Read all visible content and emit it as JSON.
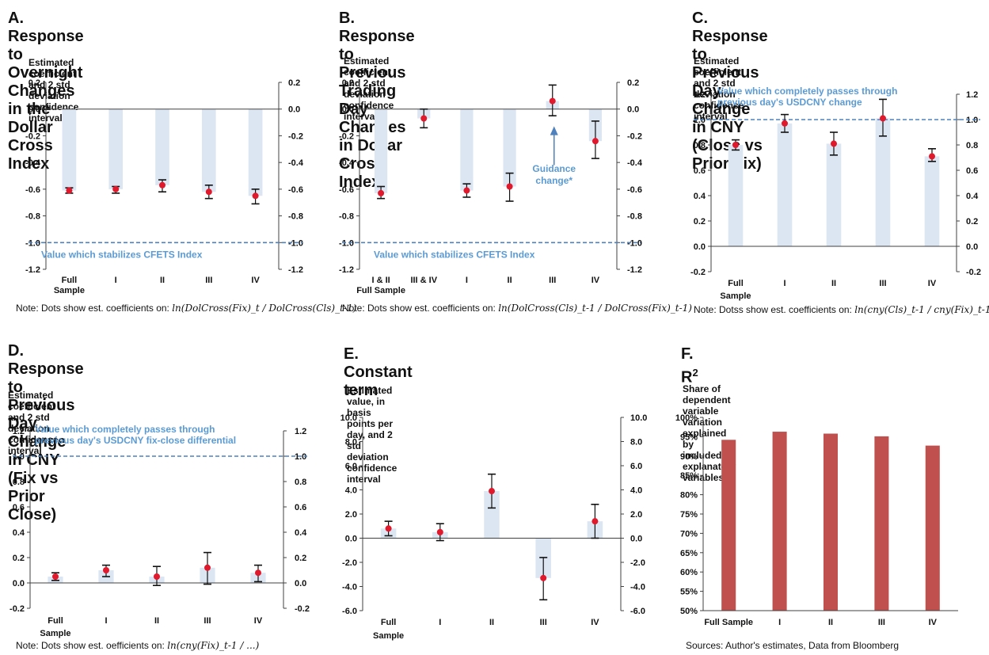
{
  "charts": [
    {
      "id": "A",
      "title": "A. Response to Overnight\nChanges in the Dollar Cross Index",
      "subtitle": "Estimated coefficient and 2 std deviation\nconfidence interval",
      "note": "Note: Dots show est. coefficients on:",
      "formula": "ln(DolCross(Fix)_t / DolCross(Cls)_t-1)",
      "chart_data": {
        "type": "bar",
        "categories": [
          "Full\nSample",
          "I",
          "II",
          "III",
          "IV"
        ],
        "values": [
          -0.61,
          -0.6,
          -0.57,
          -0.62,
          -0.65
        ],
        "error_low": [
          -0.63,
          -0.63,
          -0.62,
          -0.67,
          -0.71
        ],
        "error_high": [
          -0.59,
          -0.58,
          -0.53,
          -0.57,
          -0.6
        ],
        "ylim": [
          -1.2,
          0.2
        ],
        "yticks": [
          "0.2",
          "0.0",
          "-0.2",
          "-0.4",
          "-0.6",
          "-0.8",
          "-1.0",
          "-1.2"
        ],
        "reference_line": -1.0,
        "reference_label": "Value which stabilizes CFETS Index",
        "right_axis": true
      }
    },
    {
      "id": "B",
      "title": "B. Response to Previous Trading\nDay Changes in Dollar Cross Index",
      "subtitle": "Estimated coefficient and 2 std deviation\nconfidence interval",
      "note": "Note: Dots show est. coefficients on:",
      "formula": "ln(DolCross(Cls)_t-1 / DolCross(Fix)_t-1)",
      "chart_data": {
        "type": "bar",
        "categories": [
          "I & II\nFull Sample",
          "III & IV",
          "I",
          "II",
          "III",
          "IV"
        ],
        "values": [
          -0.63,
          -0.07,
          -0.61,
          -0.58,
          0.06,
          -0.24
        ],
        "error_low": [
          -0.67,
          -0.14,
          -0.66,
          -0.69,
          -0.05,
          -0.37
        ],
        "error_high": [
          -0.58,
          0.0,
          -0.56,
          -0.48,
          0.18,
          -0.09
        ],
        "ylim": [
          -1.2,
          0.2
        ],
        "yticks": [
          "0.2",
          "0.0",
          "-0.2",
          "-0.4",
          "-0.6",
          "-0.8",
          "-1.0",
          "-1.2"
        ],
        "reference_line": -1.0,
        "reference_label": "Value which stabilizes CFETS Index",
        "annotation": "Guidance\nchange*",
        "right_axis": true
      }
    },
    {
      "id": "C",
      "title": "C. Response to Previous Day\nChange in CNY (Close vs Prior Fix)",
      "subtitle": "Estimated coefficient and 2 std deviation\nconfidence interval",
      "note": "Note: Dotss show est. coefficients on:",
      "formula": "ln(cny(Cls)_t-1 / cny(Fix)_t-1)",
      "chart_data": {
        "type": "bar",
        "categories": [
          "Full\nSample",
          "I",
          "II",
          "III",
          "IV"
        ],
        "values": [
          0.8,
          0.97,
          0.81,
          1.01,
          0.71
        ],
        "error_low": [
          0.76,
          0.9,
          0.72,
          0.87,
          0.67
        ],
        "error_high": [
          0.84,
          1.04,
          0.9,
          1.16,
          0.77
        ],
        "ylim": [
          -0.2,
          1.2
        ],
        "yticks": [
          "1.2",
          "1.0",
          "0.8",
          "0.6",
          "0.4",
          "0.2",
          "0.0",
          "-0.2"
        ],
        "reference_line": 1.0,
        "reference_label": "Value which completely passes through\nprevious day's USDCNY change",
        "right_axis": true
      }
    },
    {
      "id": "D",
      "title": "D. Response to Previous Day\nChange in CNY (Fix vs Prior Close)",
      "subtitle": "Estimated coefficient and 2 std deviation\nconfidence interval",
      "note": "Note: Dots show est. oefficients on:",
      "formula": "ln(cny(Fix)_t-1 / ...)",
      "chart_data": {
        "type": "bar",
        "categories": [
          "Full\nSample",
          "I",
          "II",
          "III",
          "IV"
        ],
        "values": [
          0.05,
          0.1,
          0.05,
          0.12,
          0.08
        ],
        "error_low": [
          0.02,
          0.05,
          -0.02,
          -0.01,
          0.01
        ],
        "error_high": [
          0.08,
          0.14,
          0.13,
          0.24,
          0.14
        ],
        "ylim": [
          -0.2,
          1.2
        ],
        "yticks": [
          "1.2",
          "1.0",
          "0.8",
          "0.6",
          "0.4",
          "0.2",
          "0.0",
          "-0.2"
        ],
        "reference_line": 1.0,
        "reference_label": "Value which completely passes through\nprevious day's USDCNY fix-close differential",
        "right_axis": true
      }
    },
    {
      "id": "E",
      "title": "E. Constant term",
      "subtitle": "Estimated value, in basis points per day, and 2 std\ndeviation confidence interval",
      "note": "",
      "formula": "",
      "chart_data": {
        "type": "bar",
        "categories": [
          "Full\nSample",
          "I",
          "II",
          "III",
          "IV"
        ],
        "values": [
          0.8,
          0.5,
          3.9,
          -3.3,
          1.4
        ],
        "error_low": [
          0.2,
          -0.2,
          2.5,
          -5.1,
          0.0
        ],
        "error_high": [
          1.4,
          1.2,
          5.3,
          -1.6,
          2.8
        ],
        "ylim": [
          -6.0,
          10.0
        ],
        "yticks": [
          "10.0",
          "8.0",
          "6.0",
          "4.0",
          "2.0",
          "0.0",
          "-2.0",
          "-4.0",
          "-6.0"
        ],
        "right_axis": true
      }
    },
    {
      "id": "F",
      "title": "F.  R",
      "title_sup": "2",
      "subtitle": "Share of dependent variable variation explained by\nincluded explanatory variables",
      "note": "Sources: Author's estimates, Data from Bloomberg",
      "formula": "",
      "chart_data": {
        "type": "bar",
        "categories": [
          "Full Sample",
          "I",
          "II",
          "III",
          "IV"
        ],
        "values": [
          94.2,
          96.3,
          95.8,
          95.1,
          92.7
        ],
        "ylim": [
          50,
          100
        ],
        "yticks": [
          "100%",
          "95%",
          "90%",
          "85%",
          "80%",
          "75%",
          "70%",
          "65%",
          "60%",
          "55%",
          "50%"
        ],
        "bar_color": "#c0504d",
        "right_axis": false
      }
    }
  ],
  "colors": {
    "bar_light": "#dce6f2",
    "dot": "#e0192d",
    "ref_line": "#4f81bd",
    "ref_text": "#5b9bd5",
    "axis": "#404040"
  }
}
